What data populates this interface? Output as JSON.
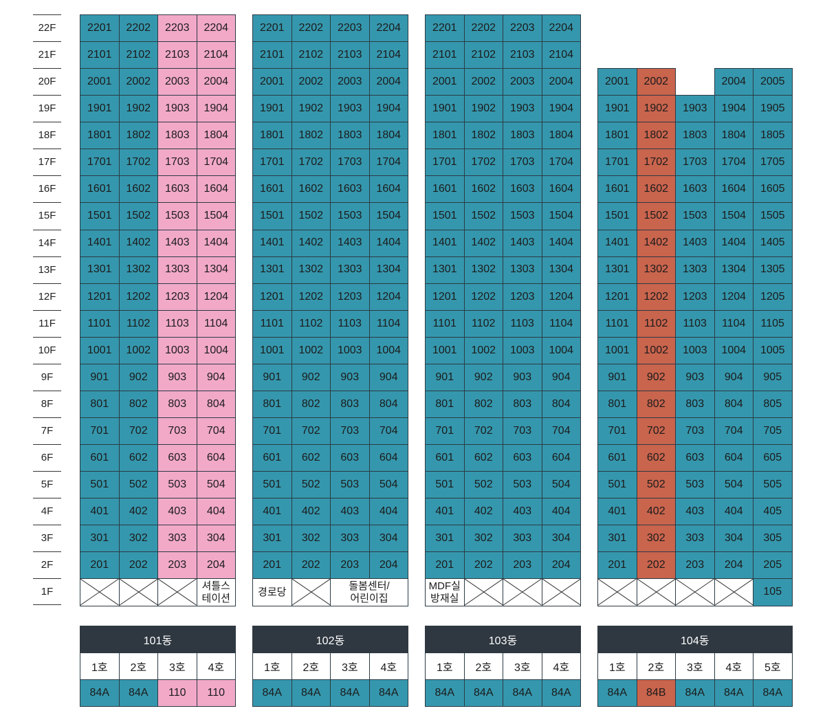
{
  "colors": {
    "blue": "#3597ad",
    "pink": "#f2a9c8",
    "red": "#c9644d",
    "header": "#2f3840"
  },
  "floors": [
    "22F",
    "21F",
    "20F",
    "19F",
    "18F",
    "17F",
    "16F",
    "15F",
    "14F",
    "13F",
    "12F",
    "11F",
    "10F",
    "9F",
    "8F",
    "7F",
    "6F",
    "5F",
    "4F",
    "3F",
    "2F",
    "1F"
  ],
  "buildings": [
    {
      "name": "101동",
      "units": [
        "1호",
        "2호",
        "3호",
        "4호"
      ],
      "types": [
        "84A",
        "84A",
        "110",
        "110"
      ],
      "unit_colors": [
        "blue",
        "blue",
        "pink",
        "pink"
      ],
      "top_floor": 22,
      "missing_units": [],
      "ground_floor": [
        {
          "label": "",
          "span": 1,
          "kind": "empty"
        },
        {
          "label": "",
          "span": 1,
          "kind": "empty"
        },
        {
          "label": "",
          "span": 1,
          "kind": "empty"
        },
        {
          "label": "셔틀스\n테이션",
          "span": 1,
          "kind": "facility"
        }
      ]
    },
    {
      "name": "102동",
      "units": [
        "1호",
        "2호",
        "3호",
        "4호"
      ],
      "types": [
        "84A",
        "84A",
        "84A",
        "84A"
      ],
      "unit_colors": [
        "blue",
        "blue",
        "blue",
        "blue"
      ],
      "top_floor": 22,
      "missing_units": [],
      "ground_floor": [
        {
          "label": "경로당",
          "span": 1,
          "kind": "facility"
        },
        {
          "label": "",
          "span": 1,
          "kind": "empty"
        },
        {
          "label": "돌봄센터/\n어린이집",
          "span": 2,
          "kind": "facility"
        }
      ]
    },
    {
      "name": "103동",
      "units": [
        "1호",
        "2호",
        "3호",
        "4호"
      ],
      "types": [
        "84A",
        "84A",
        "84A",
        "84A"
      ],
      "unit_colors": [
        "blue",
        "blue",
        "blue",
        "blue"
      ],
      "top_floor": 22,
      "missing_units": [],
      "ground_floor": [
        {
          "label": "MDF실\n방재실",
          "span": 1,
          "kind": "facility"
        },
        {
          "label": "",
          "span": 1,
          "kind": "empty"
        },
        {
          "label": "",
          "span": 1,
          "kind": "empty"
        },
        {
          "label": "",
          "span": 1,
          "kind": "empty"
        }
      ]
    },
    {
      "name": "104동",
      "units": [
        "1호",
        "2호",
        "3호",
        "4호",
        "5호"
      ],
      "types": [
        "84A",
        "84B",
        "84A",
        "84A",
        "84A"
      ],
      "unit_colors": [
        "blue",
        "red",
        "blue",
        "blue",
        "blue"
      ],
      "top_floor": 20,
      "missing_units": [
        "2003"
      ],
      "ground_floor": [
        {
          "label": "",
          "span": 1,
          "kind": "empty"
        },
        {
          "label": "",
          "span": 1,
          "kind": "empty"
        },
        {
          "label": "",
          "span": 1,
          "kind": "empty"
        },
        {
          "label": "",
          "span": 1,
          "kind": "empty"
        },
        {
          "label": "105",
          "span": 1,
          "kind": "unit"
        }
      ]
    }
  ]
}
